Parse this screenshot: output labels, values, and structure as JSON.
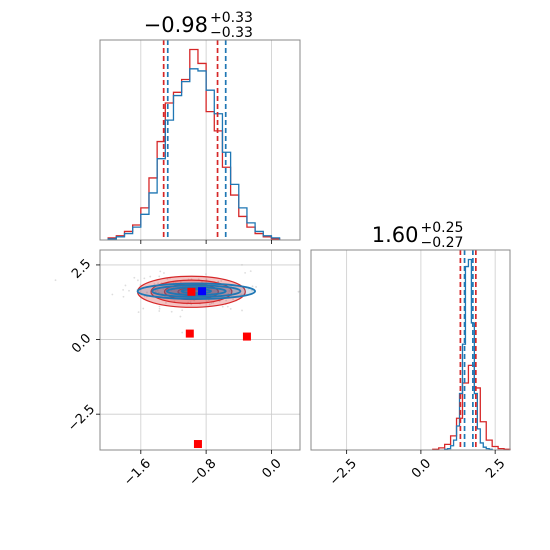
{
  "colors": {
    "series_a": "#d62728",
    "series_b": "#1f77b4",
    "truth_a": "#ff0000",
    "truth_b": "#0000ff",
    "grid": "#cccccc",
    "frame": "#888888"
  },
  "chart_data": [
    {
      "type": "histogram",
      "panel": "top-left",
      "title": {
        "main": "−0.98",
        "upper": "+0.33",
        "lower": "−0.33"
      },
      "xlim": [
        -2.1,
        0.35
      ],
      "grid": true,
      "x_ticks": [
        -1.6,
        -0.8,
        0.0
      ],
      "quantiles": {
        "series_a": [
          -1.32,
          -0.66
        ],
        "series_b": [
          -1.27,
          -0.56
        ]
      },
      "series": [
        {
          "color_key": "series_a",
          "style": "step",
          "bins": [
            -2.0,
            -1.9,
            -1.8,
            -1.7,
            -1.6,
            -1.5,
            -1.4,
            -1.3,
            -1.2,
            -1.1,
            -1.0,
            -0.9,
            -0.8,
            -0.7,
            -0.6,
            -0.5,
            -0.4,
            -0.3,
            -0.2,
            -0.1,
            0.0
          ],
          "counts": [
            2,
            4,
            8,
            14,
            30,
            58,
            92,
            128,
            138,
            150,
            178,
            165,
            120,
            102,
            68,
            42,
            22,
            12,
            6,
            3,
            1
          ]
        },
        {
          "color_key": "series_b",
          "style": "step",
          "bins": [
            -2.0,
            -1.9,
            -1.8,
            -1.7,
            -1.6,
            -1.5,
            -1.4,
            -1.3,
            -1.2,
            -1.1,
            -1.0,
            -0.9,
            -0.8,
            -0.7,
            -0.6,
            -0.5,
            -0.4,
            -0.3,
            -0.2,
            -0.1,
            0.0
          ],
          "counts": [
            1,
            3,
            6,
            12,
            24,
            44,
            76,
            112,
            135,
            148,
            160,
            158,
            140,
            118,
            82,
            52,
            30,
            16,
            8,
            4,
            2
          ]
        }
      ]
    },
    {
      "type": "contour",
      "panel": "bottom-left",
      "xlim": [
        -2.1,
        0.35
      ],
      "ylim": [
        -3.7,
        3.0
      ],
      "grid": true,
      "x_ticks": [
        -1.6,
        -0.8,
        0.0
      ],
      "y_ticks": [
        -2.5,
        0.0,
        2.5
      ],
      "series": [
        {
          "color_key": "series_a",
          "center": [
            -0.98,
            1.6
          ],
          "sigma": [
            0.33,
            0.26
          ],
          "levels": [
            0.5,
            1.0,
            1.5,
            2.0
          ]
        },
        {
          "color_key": "series_b",
          "center": [
            -0.92,
            1.62
          ],
          "sigma": [
            0.36,
            0.13
          ],
          "levels": [
            0.5,
            1.0,
            1.5,
            2.0
          ]
        }
      ],
      "markers": [
        {
          "color_key": "truth_a",
          "x": -0.98,
          "y": 1.6
        },
        {
          "color_key": "truth_b",
          "x": -0.85,
          "y": 1.62
        },
        {
          "color_key": "truth_a",
          "x": -1.0,
          "y": 0.2
        },
        {
          "color_key": "truth_a",
          "x": -0.3,
          "y": 0.1
        },
        {
          "color_key": "truth_a",
          "x": -0.9,
          "y": -3.5
        }
      ]
    },
    {
      "type": "histogram",
      "panel": "bottom-right",
      "title": {
        "main": "1.60",
        "upper": "+0.25",
        "lower": "−0.27"
      },
      "xlim": [
        -3.7,
        3.0
      ],
      "grid": true,
      "x_ticks": [
        -2.5,
        0.0,
        2.5
      ],
      "quantiles": {
        "series_a": [
          1.33,
          1.85
        ],
        "series_b": [
          1.47,
          1.75
        ]
      },
      "series": [
        {
          "color_key": "series_a",
          "style": "step",
          "bins": [
            0.4,
            0.6,
            0.8,
            1.0,
            1.2,
            1.4,
            1.6,
            1.8,
            2.0,
            2.2,
            2.4,
            2.6,
            2.8
          ],
          "counts": [
            1,
            3,
            8,
            20,
            45,
            95,
            120,
            88,
            40,
            14,
            5,
            2,
            1
          ]
        },
        {
          "color_key": "series_b",
          "style": "step",
          "bins": [
            0.8,
            0.9,
            1.0,
            1.1,
            1.2,
            1.3,
            1.4,
            1.5,
            1.6,
            1.7,
            1.8,
            1.9,
            2.0,
            2.1,
            2.2,
            2.3
          ],
          "counts": [
            1,
            2,
            6,
            14,
            34,
            80,
            150,
            260,
            270,
            180,
            80,
            30,
            10,
            4,
            2,
            1
          ]
        }
      ]
    }
  ]
}
